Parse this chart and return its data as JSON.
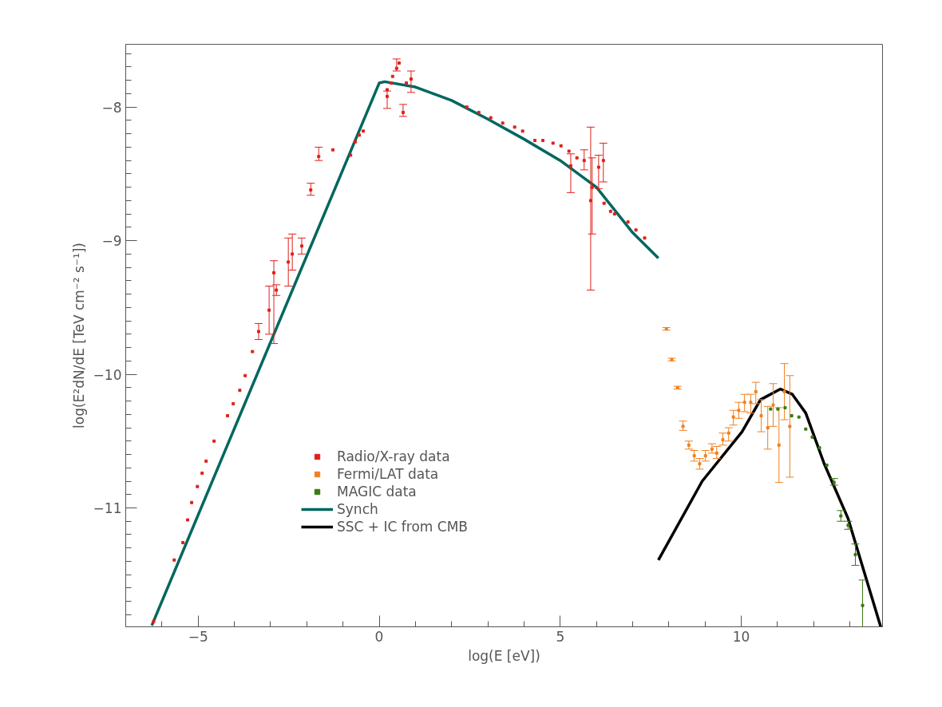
{
  "chart_data": {
    "type": "scatter",
    "xlabel": "log(E [eV])",
    "ylabel": "log(E²dN/dE [TeV cm⁻² s⁻¹])",
    "xlim": [
      -7,
      13.9
    ],
    "ylim": [
      -11.89,
      -7.53
    ],
    "xticks": [
      {
        "value": -7,
        "label": null
      },
      {
        "value": -6,
        "label": null
      },
      -5,
      {
        "value": -4,
        "label": null
      },
      {
        "value": -3,
        "label": null
      },
      {
        "value": -2,
        "label": null
      },
      {
        "value": -1,
        "label": null
      },
      0,
      {
        "value": 1,
        "label": null
      },
      {
        "value": 2,
        "label": null
      },
      {
        "value": 3,
        "label": null
      },
      {
        "value": 4,
        "label": null
      },
      5,
      {
        "value": 6,
        "label": null
      },
      {
        "value": 7,
        "label": null
      },
      {
        "value": 8,
        "label": null
      },
      {
        "value": 9,
        "label": null
      },
      10,
      {
        "value": 11,
        "label": null
      },
      {
        "value": 12,
        "label": null
      },
      {
        "value": 13,
        "label": null
      }
    ],
    "yticks": [
      {
        "value": -11.8,
        "label": null
      },
      {
        "value": -11.7,
        "label": null
      },
      {
        "value": -11.6,
        "label": null
      },
      {
        "value": -11.5,
        "label": null
      },
      {
        "value": -11.4,
        "label": null
      },
      {
        "value": -11.3,
        "label": null
      },
      {
        "value": -11.2,
        "label": null
      },
      {
        "value": -11.1,
        "label": null
      },
      -11,
      {
        "value": -10.9,
        "label": null
      },
      {
        "value": -10.8,
        "label": null
      },
      {
        "value": -10.7,
        "label": null
      },
      {
        "value": -10.6,
        "label": null
      },
      {
        "value": -10.5,
        "label": null
      },
      {
        "value": -10.4,
        "label": null
      },
      {
        "value": -10.3,
        "label": null
      },
      {
        "value": -10.2,
        "label": null
      },
      {
        "value": -10.1,
        "label": null
      },
      -10,
      {
        "value": -9.9,
        "label": null
      },
      {
        "value": -9.8,
        "label": null
      },
      {
        "value": -9.7,
        "label": null
      },
      {
        "value": -9.6,
        "label": null
      },
      {
        "value": -9.5,
        "label": null
      },
      {
        "value": -9.4,
        "label": null
      },
      {
        "value": -9.3,
        "label": null
      },
      {
        "value": -9.2,
        "label": null
      },
      {
        "value": -9.1,
        "label": null
      },
      -9,
      {
        "value": -8.9,
        "label": null
      },
      {
        "value": -8.8,
        "label": null
      },
      {
        "value": -8.7,
        "label": null
      },
      {
        "value": -8.6,
        "label": null
      },
      {
        "value": -8.5,
        "label": null
      },
      {
        "value": -8.4,
        "label": null
      },
      {
        "value": -8.3,
        "label": null
      },
      {
        "value": -8.2,
        "label": null
      },
      {
        "value": -8.1,
        "label": null
      },
      -8,
      {
        "value": -7.9,
        "label": null
      },
      {
        "value": -7.8,
        "label": null
      },
      {
        "value": -7.7,
        "label": null
      },
      {
        "value": -7.6,
        "label": null
      }
    ],
    "grid": false,
    "legend": "bottom",
    "marker": "square",
    "series": [
      {
        "name": "Radio/X-ray data",
        "color": "#e0201a",
        "x": [
          -6.23,
          -5.66,
          -5.42,
          -5.29,
          -5.18,
          -5.02,
          -4.89,
          -4.78,
          -4.56,
          -4.19,
          -4.03,
          -3.85,
          -3.7,
          -3.5,
          -3.33,
          -3.04,
          -2.91,
          -2.84,
          -2.51,
          -2.4,
          -2.14,
          -1.89,
          -1.67,
          -1.28,
          -0.79,
          -0.66,
          -0.55,
          -0.44,
          0.22,
          0.22,
          0.33,
          0.37,
          0.48,
          0.55,
          0.66,
          0.75,
          0.88,
          2.42,
          2.75,
          3.08,
          3.41,
          3.74,
          3.96,
          4.3,
          4.52,
          4.8,
          5.02,
          5.24,
          5.29,
          5.46,
          5.66,
          5.84,
          5.88,
          6.06,
          6.19,
          6.21,
          6.39,
          6.5,
          6.87,
          7.09,
          7.33
        ],
        "values": [
          -11.85,
          -11.39,
          -11.26,
          -11.09,
          -10.96,
          -10.84,
          -10.74,
          -10.65,
          -10.5,
          -10.31,
          -10.22,
          -10.12,
          -10.01,
          -9.83,
          -9.68,
          -9.52,
          -9.24,
          -9.37,
          -9.16,
          -9.1,
          -9.04,
          -8.62,
          -8.37,
          -8.32,
          -8.36,
          -8.26,
          -8.21,
          -8.18,
          -7.92,
          -7.87,
          -7.82,
          -7.77,
          -7.71,
          -7.67,
          -8.04,
          -7.82,
          -7.79,
          -8.0,
          -8.04,
          -8.08,
          -8.12,
          -8.15,
          -8.18,
          -8.25,
          -8.25,
          -8.27,
          -8.29,
          -8.33,
          -8.44,
          -8.38,
          -8.4,
          -8.7,
          -8.6,
          -8.45,
          -8.4,
          -8.72,
          -8.78,
          -8.8,
          -8.86,
          -8.92,
          -8.98
        ],
        "errors": [
          null,
          null,
          null,
          null,
          null,
          null,
          null,
          null,
          null,
          null,
          null,
          null,
          null,
          null,
          [
            -9.74,
            -9.62
          ],
          [
            -9.7,
            -9.34
          ],
          [
            -9.77,
            -9.15
          ],
          [
            -9.41,
            -9.33
          ],
          [
            -9.34,
            -8.98
          ],
          [
            -9.22,
            -8.95
          ],
          [
            -9.1,
            -8.98
          ],
          [
            -8.66,
            -8.57
          ],
          [
            -8.4,
            -8.3
          ],
          null,
          null,
          null,
          null,
          null,
          [
            -8.01,
            -7.88
          ],
          null,
          null,
          null,
          [
            -7.73,
            -7.64
          ],
          null,
          [
            -8.07,
            -7.98
          ],
          null,
          [
            -7.89,
            -7.73
          ],
          null,
          null,
          null,
          null,
          null,
          null,
          null,
          null,
          null,
          null,
          null,
          [
            -8.64,
            -8.35
          ],
          null,
          [
            -8.47,
            -8.32
          ],
          [
            -9.37,
            -8.15
          ],
          [
            -8.95,
            -8.38
          ],
          [
            -8.61,
            -8.36
          ],
          [
            -8.56,
            -8.27
          ],
          null,
          null,
          null,
          null,
          null,
          null
        ]
      },
      {
        "name": "Fermi/LAT data",
        "color": "#f08020",
        "x": [
          7.93,
          8.08,
          8.24,
          8.39,
          8.55,
          8.7,
          8.85,
          9.01,
          9.19,
          9.32,
          9.49,
          9.65,
          9.78,
          9.93,
          10.09,
          10.26,
          10.4,
          10.55,
          10.73,
          10.88,
          11.04,
          11.19,
          11.34
        ],
        "values": [
          -9.66,
          -9.89,
          -10.1,
          -10.39,
          -10.53,
          -10.61,
          -10.67,
          -10.61,
          -10.56,
          -10.59,
          -10.49,
          -10.44,
          -10.32,
          -10.27,
          -10.21,
          -10.21,
          -10.13,
          -10.31,
          -10.4,
          -10.23,
          -10.53,
          -10.13,
          -10.39
        ],
        "errors": [
          [
            -9.67,
            -9.65
          ],
          [
            -9.9,
            -9.88
          ],
          [
            -10.11,
            -10.09
          ],
          [
            -10.42,
            -10.35
          ],
          [
            -10.56,
            -10.5
          ],
          [
            -10.65,
            -10.57
          ],
          [
            -10.71,
            -10.63
          ],
          [
            -10.65,
            -10.57
          ],
          [
            -10.59,
            -10.52
          ],
          [
            -10.63,
            -10.54
          ],
          [
            -10.53,
            -10.44
          ],
          [
            -10.5,
            -10.4
          ],
          [
            -10.38,
            -10.27
          ],
          [
            -10.33,
            -10.21
          ],
          [
            -10.28,
            -10.15
          ],
          [
            -10.29,
            -10.15
          ],
          [
            -10.22,
            -10.06
          ],
          [
            -10.43,
            -10.19
          ],
          [
            -10.56,
            -10.24
          ],
          [
            -10.39,
            -10.07
          ],
          [
            -10.81,
            -10.25
          ],
          [
            -10.34,
            -9.92
          ],
          [
            -10.77,
            -10.01
          ]
        ]
      },
      {
        "name": "MAGIC data",
        "color": "#3a7a10",
        "x": [
          10.81,
          11.01,
          11.21,
          11.39,
          11.59,
          11.78,
          11.96,
          12.16,
          12.36,
          12.56,
          12.75,
          12.95,
          13.15,
          13.35
        ],
        "values": [
          -10.26,
          -10.26,
          -10.25,
          -10.31,
          -10.32,
          -10.41,
          -10.47,
          -10.55,
          -10.68,
          -10.81,
          -11.06,
          -11.13,
          -11.35,
          -11.73
        ],
        "errors": [
          null,
          null,
          null,
          null,
          null,
          null,
          null,
          null,
          null,
          [
            -10.83,
            -10.78
          ],
          [
            -11.1,
            -11.02
          ],
          [
            -11.16,
            -11.1
          ],
          [
            -11.43,
            -11.27
          ],
          [
            -11.89,
            -11.54
          ]
        ]
      },
      {
        "name": "Synch",
        "type": "line",
        "color": "#00675f",
        "marker": "none",
        "x": [
          -6.28,
          0,
          0.15,
          1,
          2,
          3,
          4,
          5,
          6,
          7,
          7.71
        ],
        "values": [
          -11.88,
          -7.82,
          -7.81,
          -7.85,
          -7.95,
          -8.09,
          -8.24,
          -8.4,
          -8.6,
          -8.94,
          -9.13
        ]
      },
      {
        "name": "SSC + IC from CMB",
        "type": "line",
        "color": "#000000",
        "marker": "none",
        "x": [
          7.71,
          8.92,
          10.02,
          10.53,
          11.08,
          11.41,
          11.78,
          12.29,
          12.95,
          13.85
        ],
        "values": [
          -11.39,
          -10.8,
          -10.43,
          -10.19,
          -10.11,
          -10.15,
          -10.29,
          -10.67,
          -11.08,
          -11.89
        ]
      }
    ]
  }
}
